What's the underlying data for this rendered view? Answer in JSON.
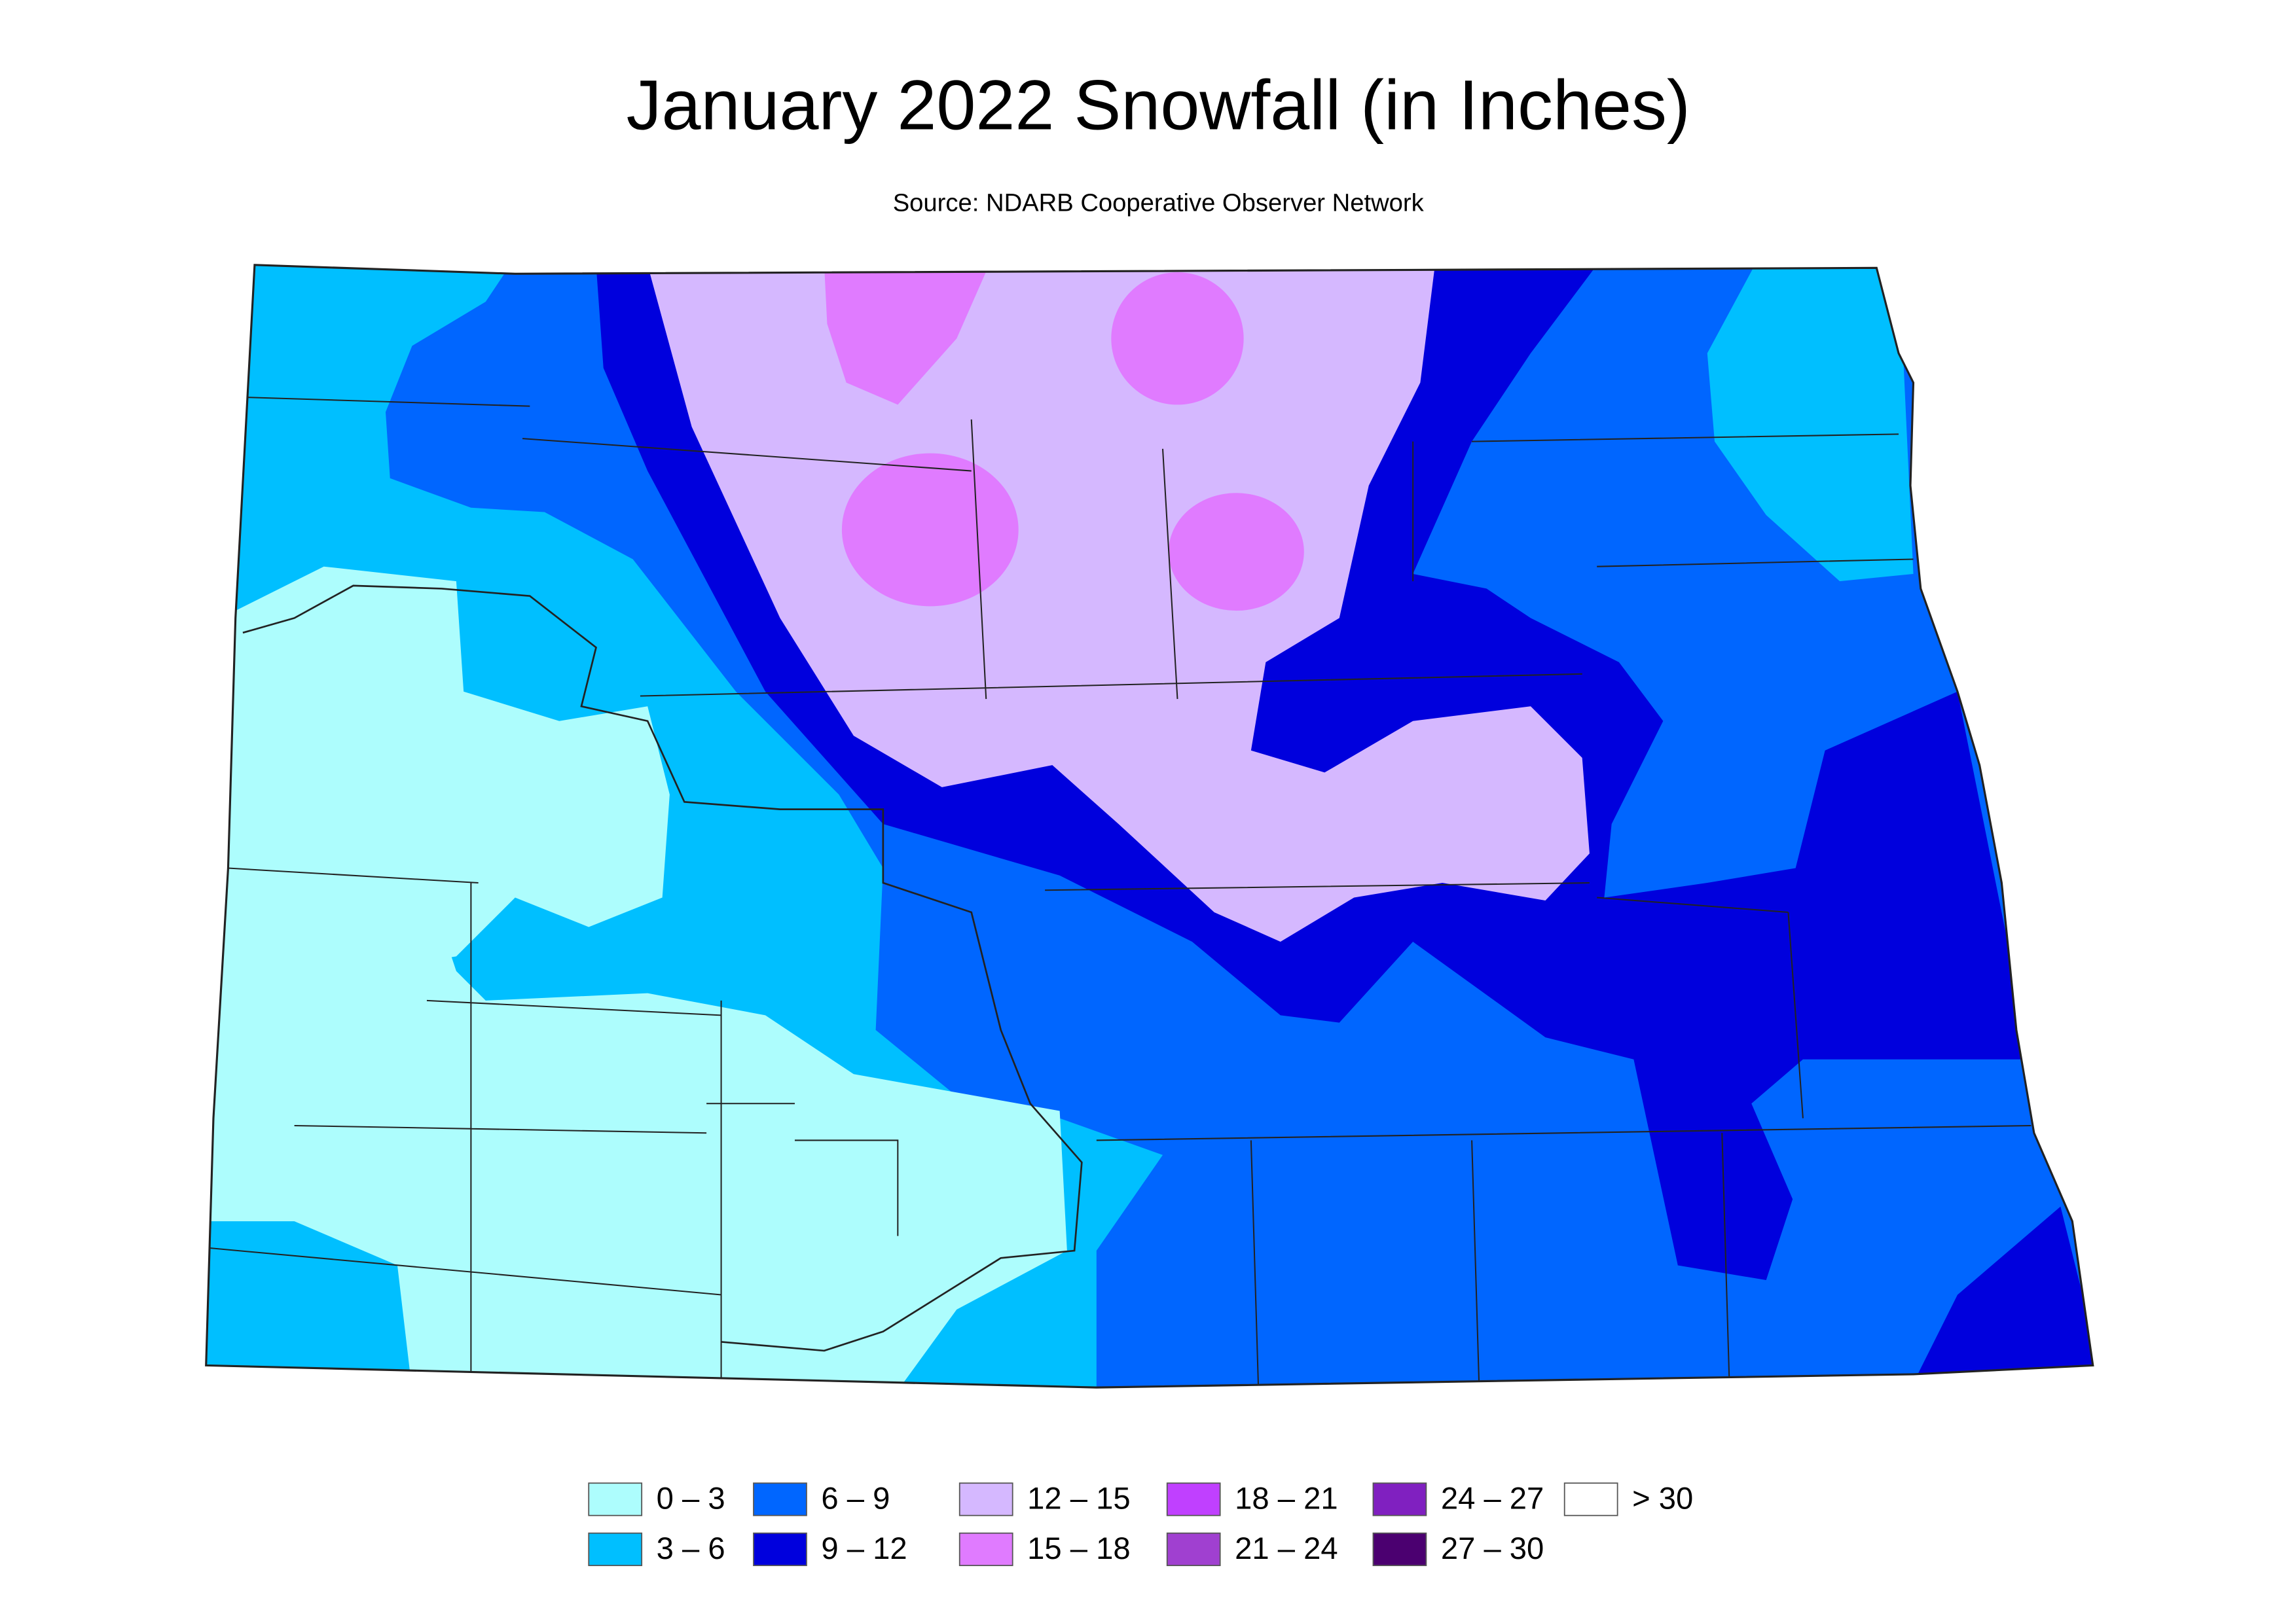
{
  "header": {
    "title": "January 2022 Snowfall (in Inches)",
    "source": "Source: NDARB Cooperative Observer Network"
  },
  "legend": [
    {
      "label": "0 – 3",
      "color": "#adfdfd"
    },
    {
      "label": "3 – 6",
      "color": "#00bfff"
    },
    {
      "label": "6 – 9",
      "color": "#0066ff"
    },
    {
      "label": "9 – 12",
      "color": "#0000dd"
    },
    {
      "label": "12 – 15",
      "color": "#d5b8ff"
    },
    {
      "label": "15 – 18",
      "color": "#e07bff"
    },
    {
      "label": "18 – 21",
      "color": "#c040ff"
    },
    {
      "label": "21 – 24",
      "color": "#a040d0"
    },
    {
      "label": "24 – 27",
      "color": "#8020c0"
    },
    {
      "label": "27 – 30",
      "color": "#4b0070"
    },
    {
      "label": ">  30",
      "color": "#ffffff"
    }
  ]
}
